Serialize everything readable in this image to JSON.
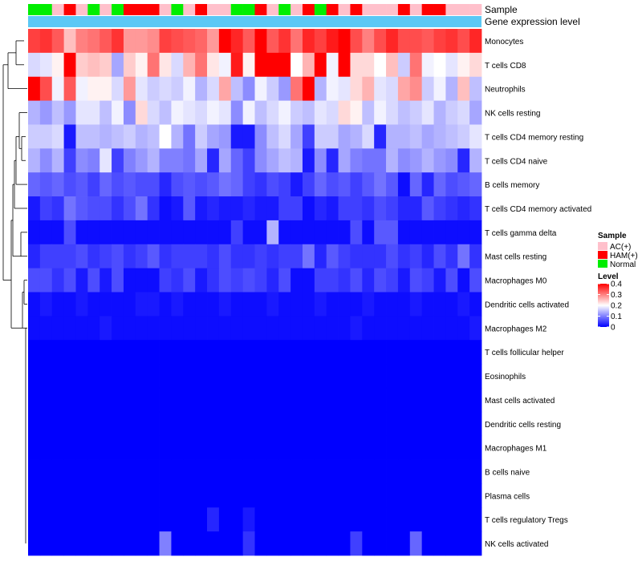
{
  "chart_data": {
    "type": "heatmap",
    "annotation_labels": {
      "sample": "Sample",
      "gene_expression": "Gene expression level"
    },
    "legend": {
      "sample": {
        "title": "Sample",
        "entries": [
          {
            "label": "AC(+)",
            "color": "#ffc0cb"
          },
          {
            "label": "HAM(+)",
            "color": "#ff0000"
          },
          {
            "label": "Normal",
            "color": "#00ee00"
          }
        ]
      },
      "level": {
        "title": "Level",
        "ticks": [
          "0.4",
          "0.3",
          "0.2",
          "0.1",
          "0"
        ],
        "tick_values": [
          0.4,
          0.3,
          0.2,
          0.1,
          0
        ],
        "range": [
          0,
          0.4
        ],
        "colors": {
          "low": "#0000ff",
          "mid": "#ffffff",
          "high": "#ff0000"
        }
      }
    },
    "gene_expression_color": "#5bc8f5",
    "columns": [
      "Normal",
      "Normal",
      "AC(+)",
      "HAM(+)",
      "AC(+)",
      "Normal",
      "AC(+)",
      "Normal",
      "HAM(+)",
      "HAM(+)",
      "HAM(+)",
      "AC(+)",
      "Normal",
      "AC(+)",
      "HAM(+)",
      "AC(+)",
      "AC(+)",
      "Normal",
      "Normal",
      "HAM(+)",
      "AC(+)",
      "Normal",
      "AC(+)",
      "HAM(+)",
      "Normal",
      "HAM(+)",
      "AC(+)",
      "HAM(+)",
      "AC(+)",
      "AC(+)",
      "AC(+)",
      "HAM(+)",
      "AC(+)",
      "HAM(+)",
      "HAM(+)",
      "AC(+)",
      "AC(+)",
      "AC(+)"
    ],
    "rows": [
      "Monocytes",
      "T cells CD8",
      "Neutrophils",
      "NK cells resting",
      "T cells CD4 memory resting",
      "T cells CD4 naive",
      "B cells memory",
      "T cells CD4 memory activated",
      "T cells gamma delta",
      "Mast cells resting",
      "Macrophages M0",
      "Dendritic cells activated",
      "Macrophages M2",
      "T cells follicular helper",
      "Eosinophils",
      "Mast cells activated",
      "Dendritic cells resting",
      "Macrophages M1",
      "B cells naive",
      "Plasma cells",
      "T cells regulatory  Tregs",
      "NK cells activated"
    ],
    "values": [
      [
        0.35,
        0.36,
        0.33,
        0.25,
        0.3,
        0.31,
        0.33,
        0.36,
        0.28,
        0.28,
        0.29,
        0.35,
        0.34,
        0.33,
        0.32,
        0.28,
        0.4,
        0.37,
        0.33,
        0.4,
        0.33,
        0.36,
        0.31,
        0.37,
        0.35,
        0.38,
        0.4,
        0.34,
        0.3,
        0.34,
        0.37,
        0.34,
        0.34,
        0.33,
        0.35,
        0.36,
        0.34,
        0.37
      ],
      [
        0.17,
        0.18,
        0.21,
        0.4,
        0.24,
        0.25,
        0.24,
        0.13,
        0.24,
        0.21,
        0.31,
        0.22,
        0.17,
        0.26,
        0.31,
        0.22,
        0.19,
        0.38,
        0.21,
        0.42,
        0.42,
        0.42,
        0.2,
        0.26,
        0.42,
        0.19,
        0.4,
        0.23,
        0.23,
        0.2,
        0.25,
        0.16,
        0.31,
        0.19,
        0.2,
        0.18,
        0.21,
        0.23
      ],
      [
        0.4,
        0.34,
        0.19,
        0.33,
        0.19,
        0.21,
        0.21,
        0.17,
        0.28,
        0.18,
        0.16,
        0.17,
        0.16,
        0.19,
        0.14,
        0.17,
        0.27,
        0.15,
        0.11,
        0.19,
        0.16,
        0.12,
        0.31,
        0.41,
        0.14,
        0.19,
        0.18,
        0.23,
        0.26,
        0.18,
        0.17,
        0.27,
        0.29,
        0.16,
        0.19,
        0.14,
        0.25,
        0.15
      ],
      [
        0.14,
        0.12,
        0.15,
        0.12,
        0.18,
        0.18,
        0.15,
        0.19,
        0.11,
        0.23,
        0.17,
        0.15,
        0.19,
        0.18,
        0.17,
        0.19,
        0.18,
        0.11,
        0.19,
        0.15,
        0.17,
        0.19,
        0.16,
        0.15,
        0.18,
        0.17,
        0.23,
        0.21,
        0.15,
        0.19,
        0.17,
        0.15,
        0.16,
        0.18,
        0.14,
        0.16,
        0.17,
        0.13
      ],
      [
        0.16,
        0.16,
        0.17,
        0.02,
        0.15,
        0.15,
        0.14,
        0.15,
        0.16,
        0.14,
        0.15,
        0.2,
        0.14,
        0.09,
        0.16,
        0.13,
        0.12,
        0.02,
        0.02,
        0.11,
        0.15,
        0.17,
        0.13,
        0.05,
        0.16,
        0.16,
        0.13,
        0.14,
        0.17,
        0.03,
        0.14,
        0.14,
        0.15,
        0.13,
        0.14,
        0.15,
        0.16,
        0.18
      ],
      [
        0.14,
        0.11,
        0.14,
        0.05,
        0.11,
        0.1,
        0.18,
        0.05,
        0.1,
        0.12,
        0.14,
        0.1,
        0.1,
        0.09,
        0.13,
        0.03,
        0.13,
        0.08,
        0.05,
        0.11,
        0.13,
        0.15,
        0.14,
        0.02,
        0.11,
        0.03,
        0.13,
        0.1,
        0.09,
        0.09,
        0.14,
        0.11,
        0.12,
        0.14,
        0.12,
        0.11,
        0.03,
        0.14
      ],
      [
        0.08,
        0.07,
        0.08,
        0.06,
        0.07,
        0.05,
        0.08,
        0.06,
        0.07,
        0.06,
        0.06,
        0.03,
        0.06,
        0.07,
        0.06,
        0.07,
        0.09,
        0.08,
        0.05,
        0.04,
        0.06,
        0.05,
        0.02,
        0.05,
        0.08,
        0.06,
        0.07,
        0.05,
        0.07,
        0.09,
        0.07,
        0.01,
        0.08,
        0.03,
        0.08,
        0.06,
        0.07,
        0.08
      ],
      [
        0.02,
        0.05,
        0.04,
        0.09,
        0.07,
        0.06,
        0.06,
        0.04,
        0.06,
        0.09,
        0.04,
        0.01,
        0.02,
        0.07,
        0.02,
        0.03,
        0.02,
        0.02,
        0.03,
        0.02,
        0.02,
        0.05,
        0.05,
        0.01,
        0.03,
        0.02,
        0.05,
        0.05,
        0.04,
        0.06,
        0.05,
        0.03,
        0.03,
        0.07,
        0.05,
        0.04,
        0.03,
        0.04
      ],
      [
        0.01,
        0.01,
        0.01,
        0.06,
        0.01,
        0.01,
        0.01,
        0.01,
        0.01,
        0.01,
        0.01,
        0.01,
        0.01,
        0.01,
        0.01,
        0.01,
        0.01,
        0.05,
        0.01,
        0.01,
        0.14,
        0.01,
        0.01,
        0.01,
        0.01,
        0.01,
        0.01,
        0.06,
        0.01,
        0.07,
        0.07,
        0.01,
        0.01,
        0.01,
        0.01,
        0.01,
        0.01,
        0.01
      ],
      [
        0.03,
        0.05,
        0.05,
        0.05,
        0.06,
        0.04,
        0.05,
        0.06,
        0.04,
        0.05,
        0.07,
        0.04,
        0.05,
        0.05,
        0.05,
        0.04,
        0.06,
        0.04,
        0.04,
        0.05,
        0.04,
        0.05,
        0.05,
        0.09,
        0.03,
        0.07,
        0.05,
        0.04,
        0.04,
        0.04,
        0.06,
        0.04,
        0.05,
        0.03,
        0.06,
        0.04,
        0.09,
        0.04
      ],
      [
        0.06,
        0.06,
        0.04,
        0.06,
        0.02,
        0.06,
        0.02,
        0.06,
        0.01,
        0.01,
        0.01,
        0.05,
        0.04,
        0.06,
        0.02,
        0.04,
        0.06,
        0.05,
        0.06,
        0.05,
        0.03,
        0.06,
        0.01,
        0.01,
        0.05,
        0.05,
        0.04,
        0.06,
        0.03,
        0.06,
        0.05,
        0.02,
        0.06,
        0.05,
        0.02,
        0.06,
        0.01,
        0.06
      ],
      [
        0.01,
        0.02,
        0.01,
        0.01,
        0.02,
        0.01,
        0.01,
        0.01,
        0.01,
        0.02,
        0.02,
        0.01,
        0.02,
        0.01,
        0.01,
        0.01,
        0.02,
        0.01,
        0.01,
        0.01,
        0.02,
        0.01,
        0.01,
        0.01,
        0.02,
        0.01,
        0.01,
        0.01,
        0.02,
        0.01,
        0.01,
        0.01,
        0.02,
        0.01,
        0.01,
        0.01,
        0.02,
        0.01
      ],
      [
        0.01,
        0.01,
        0.01,
        0.01,
        0.01,
        0.01,
        0.02,
        0.01,
        0.01,
        0.01,
        0.01,
        0.01,
        0.01,
        0.01,
        0.01,
        0.01,
        0.01,
        0.01,
        0.01,
        0.01,
        0.01,
        0.01,
        0.01,
        0.01,
        0.01,
        0.01,
        0.01,
        0.02,
        0.01,
        0.01,
        0.01,
        0.01,
        0.01,
        0.01,
        0.01,
        0.01,
        0.01,
        0.02
      ],
      [
        0,
        0,
        0,
        0,
        0,
        0,
        0,
        0,
        0,
        0,
        0,
        0,
        0,
        0,
        0,
        0,
        0,
        0,
        0,
        0,
        0,
        0,
        0,
        0,
        0,
        0,
        0,
        0,
        0,
        0,
        0,
        0,
        0,
        0,
        0,
        0,
        0,
        0
      ],
      [
        0,
        0,
        0,
        0,
        0,
        0,
        0,
        0,
        0,
        0,
        0,
        0,
        0,
        0,
        0,
        0,
        0,
        0,
        0,
        0,
        0,
        0,
        0,
        0,
        0,
        0,
        0,
        0,
        0,
        0,
        0,
        0,
        0,
        0,
        0,
        0,
        0,
        0
      ],
      [
        0,
        0,
        0,
        0,
        0,
        0,
        0,
        0,
        0,
        0,
        0,
        0,
        0,
        0,
        0,
        0,
        0,
        0,
        0,
        0,
        0,
        0,
        0,
        0,
        0,
        0,
        0,
        0,
        0,
        0,
        0,
        0,
        0,
        0,
        0,
        0,
        0,
        0
      ],
      [
        0,
        0,
        0,
        0,
        0,
        0,
        0,
        0,
        0,
        0,
        0,
        0,
        0,
        0,
        0,
        0,
        0,
        0,
        0,
        0,
        0,
        0,
        0,
        0,
        0,
        0,
        0,
        0,
        0,
        0,
        0,
        0,
        0,
        0,
        0,
        0,
        0,
        0
      ],
      [
        0,
        0,
        0,
        0,
        0,
        0,
        0,
        0,
        0,
        0,
        0,
        0,
        0,
        0,
        0,
        0,
        0,
        0,
        0,
        0,
        0,
        0,
        0,
        0,
        0,
        0,
        0,
        0,
        0,
        0,
        0,
        0,
        0,
        0,
        0,
        0,
        0,
        0
      ],
      [
        0,
        0,
        0,
        0,
        0,
        0,
        0,
        0,
        0,
        0,
        0,
        0,
        0,
        0,
        0,
        0,
        0,
        0,
        0,
        0,
        0,
        0,
        0,
        0,
        0,
        0,
        0,
        0,
        0,
        0,
        0,
        0,
        0,
        0,
        0,
        0,
        0,
        0
      ],
      [
        0,
        0,
        0,
        0,
        0,
        0,
        0,
        0,
        0,
        0,
        0,
        0,
        0,
        0,
        0,
        0,
        0,
        0,
        0,
        0,
        0,
        0,
        0,
        0,
        0,
        0,
        0,
        0,
        0,
        0,
        0,
        0,
        0,
        0,
        0,
        0,
        0,
        0
      ],
      [
        0,
        0,
        0,
        0,
        0,
        0,
        0,
        0,
        0,
        0,
        0,
        0,
        0,
        0,
        0,
        0.03,
        0,
        0,
        0.02,
        0,
        0,
        0,
        0,
        0,
        0,
        0,
        0,
        0,
        0,
        0,
        0,
        0,
        0,
        0,
        0,
        0,
        0,
        0
      ],
      [
        0,
        0,
        0,
        0,
        0,
        0,
        0,
        0,
        0,
        0,
        0,
        0.1,
        0,
        0,
        0,
        0,
        0,
        0,
        0.04,
        0,
        0,
        0,
        0,
        0,
        0,
        0,
        0,
        0.05,
        0,
        0,
        0,
        0,
        0.08,
        0,
        0,
        0,
        0,
        0
      ]
    ]
  }
}
